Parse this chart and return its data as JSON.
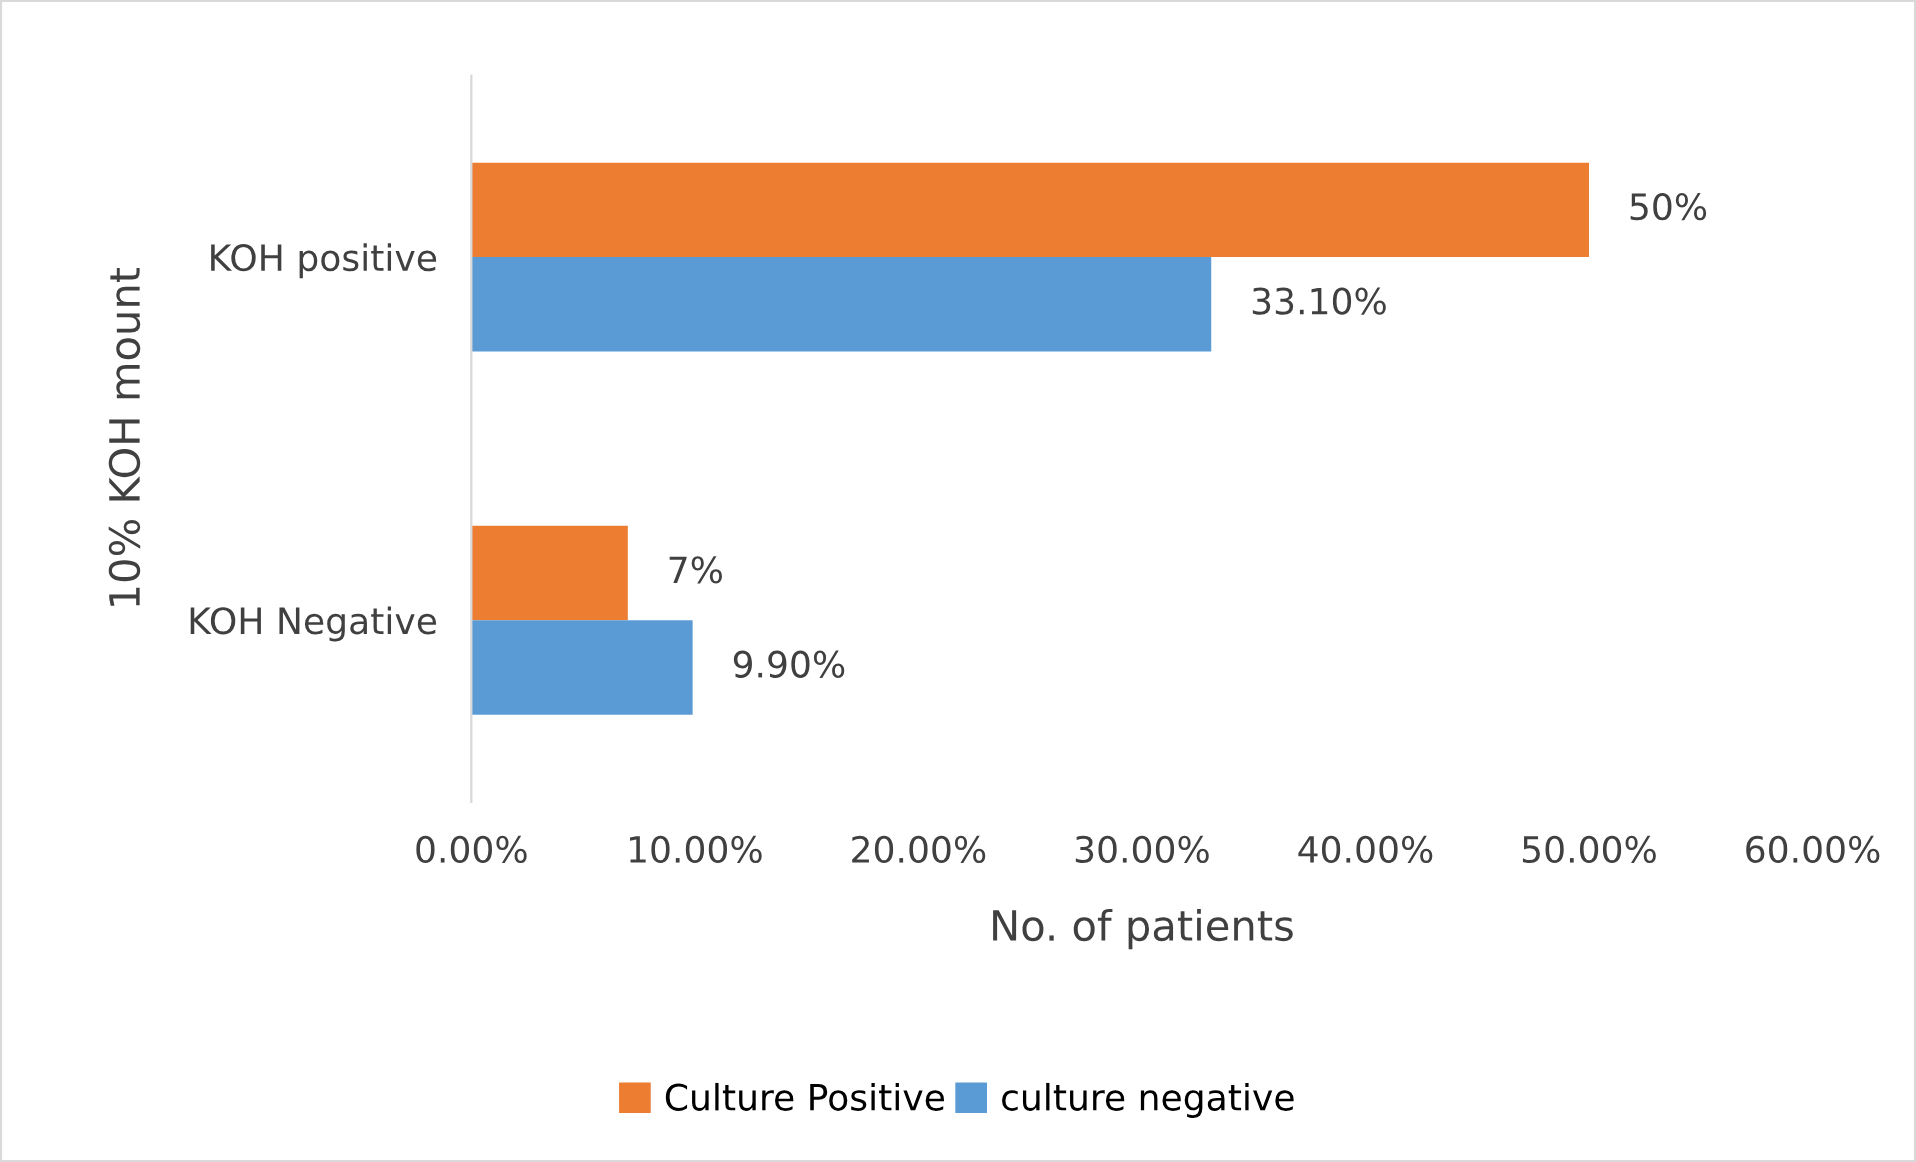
{
  "chart_data": {
    "type": "bar",
    "orientation": "horizontal",
    "categories": [
      "KOH positive",
      "KOH Negative"
    ],
    "series": [
      {
        "name": "Culture Positive",
        "color": "#ed7d31",
        "values": [
          50,
          7
        ],
        "value_labels": [
          "50%",
          "7%"
        ]
      },
      {
        "name": "culture negative",
        "color": "#5b9bd5",
        "values": [
          33.1,
          9.9
        ],
        "value_labels": [
          "33.10%",
          "9.90%"
        ]
      }
    ],
    "xlabel": "No. of patients",
    "ylabel": "10% KOH mount",
    "xlim": [
      0,
      60
    ],
    "xticks": [
      {
        "value": 0,
        "label": "0.00%"
      },
      {
        "value": 10,
        "label": "10.00%"
      },
      {
        "value": 20,
        "label": "20.00%"
      },
      {
        "value": 30,
        "label": "30.00%"
      },
      {
        "value": 40,
        "label": "40.00%"
      },
      {
        "value": 50,
        "label": "50.00%"
      },
      {
        "value": 60,
        "label": "60.00%"
      }
    ],
    "grid": false,
    "legend": "bottom"
  }
}
